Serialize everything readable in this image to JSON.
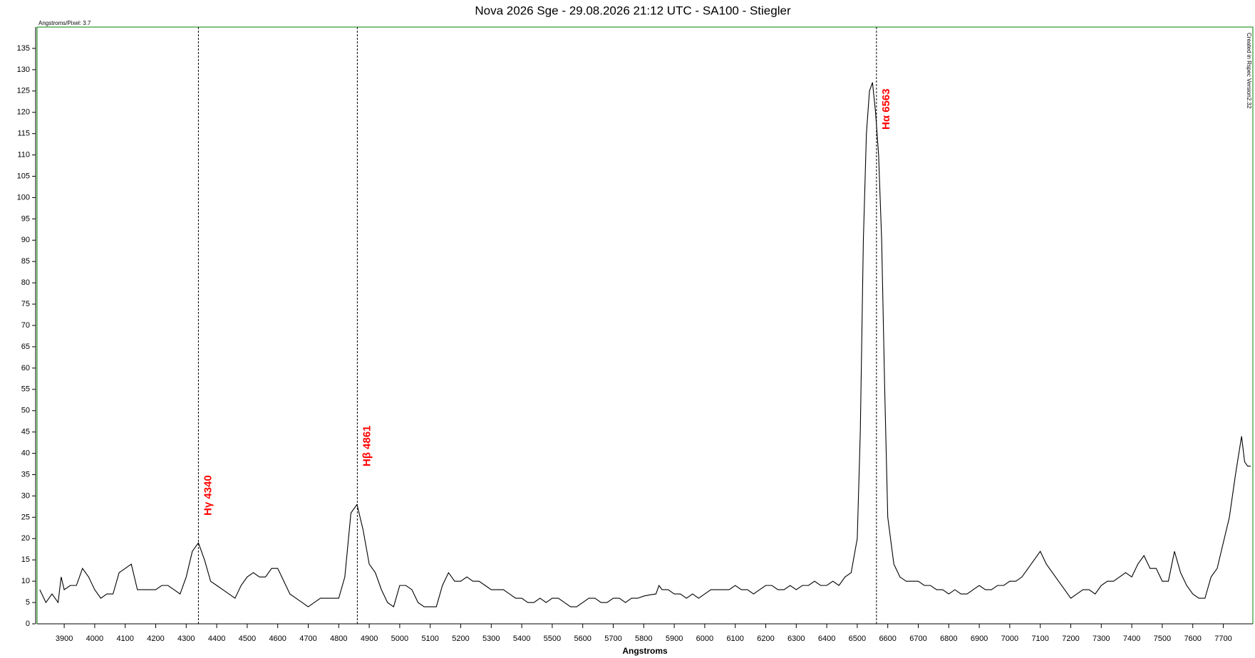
{
  "chart_data": {
    "type": "line",
    "title": "Nova 2026 Sge - 29.08.2026 21:12 UTC - SA100 - Stiegler",
    "x_label": "Angstroms",
    "top_note": "Angstroms/Pixel: 3.7",
    "side_note": "Created in Rspec Version2.32",
    "xlim": [
      3811,
      7797
    ],
    "ylim": [
      0,
      140
    ],
    "xticks": [
      3900,
      4000,
      4100,
      4200,
      4300,
      4400,
      4500,
      4600,
      4700,
      4800,
      4900,
      5000,
      5100,
      5200,
      5300,
      5400,
      5500,
      5600,
      5700,
      5800,
      5900,
      6000,
      6100,
      6200,
      6300,
      6400,
      6500,
      6600,
      6700,
      6800,
      6900,
      7000,
      7100,
      7200,
      7300,
      7400,
      7500,
      7600,
      7700
    ],
    "yticks": [
      0,
      5,
      10,
      15,
      20,
      25,
      30,
      35,
      40,
      45,
      50,
      55,
      60,
      65,
      70,
      75,
      80,
      85,
      90,
      95,
      100,
      105,
      110,
      115,
      120,
      125,
      130,
      135
    ],
    "frame_color": "#008000",
    "annotation_color": "#ff0000",
    "annotations": [
      {
        "x": 4340,
        "label": "Hγ 4340"
      },
      {
        "x": 4861,
        "label": "Hβ 4861"
      },
      {
        "x": 6563,
        "label": "Hα 6563"
      }
    ],
    "color": "#000000",
    "x": [
      3820,
      3840,
      3860,
      3880,
      3890,
      3900,
      3920,
      3940,
      3960,
      3980,
      4000,
      4020,
      4040,
      4060,
      4080,
      4100,
      4120,
      4140,
      4160,
      4180,
      4200,
      4220,
      4240,
      4260,
      4280,
      4300,
      4320,
      4340,
      4360,
      4380,
      4400,
      4420,
      4440,
      4460,
      4480,
      4500,
      4520,
      4540,
      4560,
      4580,
      4600,
      4620,
      4640,
      4660,
      4680,
      4700,
      4720,
      4740,
      4760,
      4780,
      4800,
      4820,
      4840,
      4860,
      4880,
      4900,
      4920,
      4940,
      4960,
      4980,
      5000,
      5020,
      5040,
      5060,
      5080,
      5100,
      5120,
      5140,
      5160,
      5180,
      5200,
      5220,
      5240,
      5260,
      5280,
      5300,
      5320,
      5340,
      5360,
      5380,
      5400,
      5420,
      5440,
      5460,
      5480,
      5500,
      5520,
      5540,
      5560,
      5580,
      5600,
      5620,
      5640,
      5660,
      5680,
      5700,
      5720,
      5740,
      5760,
      5780,
      5800,
      5820,
      5840,
      5850,
      5860,
      5880,
      5900,
      5920,
      5940,
      5960,
      5980,
      6000,
      6020,
      6040,
      6060,
      6080,
      6100,
      6120,
      6140,
      6160,
      6180,
      6200,
      6220,
      6240,
      6260,
      6280,
      6300,
      6320,
      6340,
      6360,
      6380,
      6400,
      6420,
      6440,
      6460,
      6480,
      6500,
      6510,
      6520,
      6530,
      6540,
      6550,
      6560,
      6570,
      6580,
      6590,
      6600,
      6620,
      6640,
      6660,
      6680,
      6700,
      6720,
      6740,
      6760,
      6780,
      6800,
      6820,
      6840,
      6860,
      6880,
      6900,
      6920,
      6940,
      6960,
      6980,
      7000,
      7020,
      7040,
      7060,
      7080,
      7100,
      7120,
      7140,
      7160,
      7180,
      7200,
      7220,
      7240,
      7260,
      7280,
      7300,
      7320,
      7340,
      7360,
      7380,
      7400,
      7420,
      7440,
      7460,
      7480,
      7500,
      7520,
      7540,
      7560,
      7580,
      7600,
      7620,
      7640,
      7660,
      7680,
      7700,
      7720,
      7740,
      7760,
      7770,
      7780,
      7790
    ],
    "values": [
      8,
      5,
      7,
      5,
      11,
      8,
      9,
      9,
      13,
      11,
      8,
      6,
      7,
      7,
      12,
      13,
      14,
      8,
      8,
      8,
      8,
      9,
      9,
      8,
      7,
      11,
      17,
      19,
      15,
      10,
      9,
      8,
      7,
      6,
      9,
      11,
      12,
      11,
      11,
      13,
      13,
      10,
      7,
      6,
      5,
      4,
      5,
      6,
      6,
      6,
      6,
      11,
      26,
      28,
      22,
      14,
      12,
      8,
      5,
      4,
      9,
      9,
      8,
      5,
      4,
      4,
      4,
      9,
      12,
      10,
      10,
      11,
      10,
      10,
      9,
      8,
      8,
      8,
      7,
      6,
      6,
      5,
      5,
      6,
      5,
      6,
      6,
      5,
      4,
      4,
      5,
      6,
      6,
      5,
      5,
      6,
      6,
      5,
      6,
      6,
      6.5,
      6.8,
      7,
      9,
      8,
      8,
      7,
      7,
      6,
      7,
      6,
      7,
      8,
      8,
      8,
      8,
      9,
      8,
      8,
      7,
      8,
      9,
      9,
      8,
      8,
      9,
      8,
      9,
      9,
      10,
      9,
      9,
      10,
      9,
      11,
      12,
      20,
      45,
      90,
      115,
      125,
      127,
      120,
      110,
      90,
      55,
      25,
      14,
      11,
      10,
      10,
      10,
      9,
      9,
      8,
      8,
      7,
      8,
      7,
      7,
      8,
      9,
      8,
      8,
      9,
      9,
      10,
      10,
      11,
      13,
      15,
      17,
      14,
      12,
      10,
      8,
      6,
      7,
      8,
      8,
      7,
      9,
      10,
      10,
      11,
      12,
      11,
      14,
      16,
      13,
      13,
      10,
      10,
      17,
      12,
      9,
      7,
      6,
      6,
      11,
      13,
      19,
      25,
      35,
      44,
      38,
      37,
      37
    ]
  }
}
